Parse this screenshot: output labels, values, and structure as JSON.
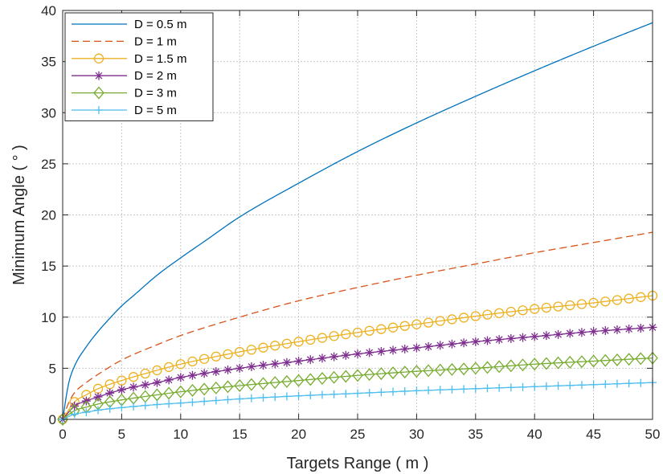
{
  "chart_data": {
    "type": "line",
    "xlabel": "Targets Range ( m )",
    "ylabel": "Minimum Angle ( ° )",
    "xlim": [
      0,
      50
    ],
    "ylim": [
      0,
      40
    ],
    "xticks": [
      0,
      5,
      10,
      15,
      20,
      25,
      30,
      35,
      40,
      45,
      50
    ],
    "yticks": [
      0,
      5,
      10,
      15,
      20,
      25,
      30,
      35,
      40
    ],
    "grid": true,
    "legend_position": "top-left",
    "series": [
      {
        "name": "D = 0.5 m",
        "color": "#0072BD",
        "style": "solid",
        "marker": "none",
        "x": [
          0,
          0.5,
          1,
          2,
          3,
          4,
          5,
          6,
          8,
          10,
          12,
          15,
          20,
          25,
          30,
          35,
          40,
          45,
          50
        ],
        "y": [
          0,
          3.5,
          5.2,
          7.1,
          8.6,
          9.9,
          11.1,
          12.1,
          14.1,
          15.8,
          17.4,
          19.8,
          23.1,
          26.2,
          29.0,
          31.6,
          34.1,
          36.5,
          38.8
        ]
      },
      {
        "name": "D = 1 m",
        "color": "#D95319",
        "style": "dashed",
        "marker": "none",
        "x": [
          0,
          0.5,
          1,
          2,
          3,
          5,
          8,
          10,
          15,
          20,
          25,
          30,
          35,
          40,
          45,
          50
        ],
        "y": [
          0,
          1.6,
          2.6,
          3.6,
          4.4,
          5.8,
          7.3,
          8.2,
          10.0,
          11.6,
          12.9,
          14.1,
          15.2,
          16.3,
          17.3,
          18.3
        ]
      },
      {
        "name": "D = 1.5 m",
        "color": "#EDB120",
        "style": "solid",
        "marker": "circle",
        "x": [
          0,
          1,
          2,
          3,
          5,
          8,
          10,
          15,
          20,
          25,
          30,
          35,
          40,
          45,
          50
        ],
        "y": [
          0,
          1.7,
          2.4,
          3.0,
          3.8,
          4.8,
          5.4,
          6.6,
          7.6,
          8.5,
          9.3,
          10.1,
          10.8,
          11.4,
          12.1
        ]
      },
      {
        "name": "D = 2 m",
        "color": "#7E2F8E",
        "style": "solid",
        "marker": "star",
        "x": [
          0,
          1,
          2,
          3,
          5,
          8,
          10,
          15,
          20,
          25,
          30,
          35,
          40,
          45,
          50
        ],
        "y": [
          0,
          1.3,
          1.8,
          2.2,
          2.9,
          3.6,
          4.1,
          5.0,
          5.7,
          6.4,
          7.0,
          7.6,
          8.1,
          8.6,
          9.0
        ]
      },
      {
        "name": "D = 3 m",
        "color": "#77AC30",
        "style": "solid",
        "marker": "diamond",
        "x": [
          0,
          1,
          2,
          3,
          5,
          8,
          10,
          15,
          20,
          25,
          30,
          35,
          40,
          45,
          50
        ],
        "y": [
          0,
          0.85,
          1.2,
          1.5,
          1.9,
          2.4,
          2.7,
          3.3,
          3.8,
          4.3,
          4.7,
          5.0,
          5.4,
          5.7,
          6.0
        ]
      },
      {
        "name": "D = 5 m",
        "color": "#4DBEEE",
        "style": "solid",
        "marker": "plus",
        "x": [
          0,
          1,
          2,
          3,
          5,
          8,
          10,
          15,
          20,
          25,
          30,
          35,
          40,
          45,
          50
        ],
        "y": [
          0,
          0.5,
          0.7,
          0.9,
          1.15,
          1.45,
          1.6,
          2.0,
          2.3,
          2.55,
          2.8,
          3.0,
          3.2,
          3.4,
          3.6
        ]
      }
    ]
  }
}
